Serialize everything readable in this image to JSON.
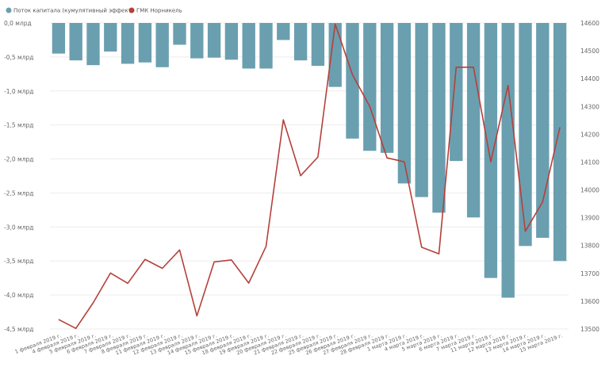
{
  "legend": {
    "items": [
      {
        "label": "Поток капитала (кумулятивный эффект)",
        "color": "#6a9fb0"
      },
      {
        "label": "ГМК Норникель",
        "color": "#b5403a"
      }
    ]
  },
  "chart_data": {
    "type": "bar",
    "categories": [
      "1 февраля 2019 г.",
      "4 февраля 2019 г.",
      "5 февраля 2019 г.",
      "6 февраля 2019 г.",
      "7 февраля 2019 г.",
      "8 февраля 2019 г.",
      "11 февраля 2019 г.",
      "12 февраля 2019 г.",
      "13 февраля 2019 г.",
      "14 февраля 2019 г.",
      "15 февраля 2019 г.",
      "18 февраля 2019 г.",
      "19 февраля 2019 г.",
      "20 февраля 2019 г.",
      "21 февраля 2019 г.",
      "22 февраля 2019 г.",
      "25 февраля 2019 г.",
      "26 февраля 2019 г.",
      "27 февраля 2019 г.",
      "28 февраля 2019 г.",
      "1 марта 2019 г.",
      "4 марта 2019 г.",
      "5 марта 2019 г.",
      "6 марта 2019 г.",
      "7 марта 2019 г.",
      "11 марта 2019 г.",
      "12 марта 2019 г.",
      "13 марта 2019 г.",
      "14 марта 2019 г.",
      "15 марта 2019 г."
    ],
    "series": [
      {
        "name": "Поток капитала (кумулятивный эффект)",
        "kind": "bar",
        "axis": "left",
        "color": "#6a9fb0",
        "values": [
          -0.45,
          -0.55,
          -0.62,
          -0.42,
          -0.6,
          -0.58,
          -0.65,
          -0.32,
          -0.52,
          -0.51,
          -0.54,
          -0.67,
          -0.67,
          -0.25,
          -0.55,
          -0.63,
          -0.94,
          -1.7,
          -1.88,
          -1.91,
          -2.36,
          -2.56,
          -2.79,
          -2.03,
          -2.86,
          -3.75,
          -4.04,
          -3.28,
          -3.16,
          -3.5
        ]
      },
      {
        "name": "ГМК Норникель",
        "kind": "line",
        "axis": "right",
        "color": "#b5403a",
        "values": [
          13534,
          13502,
          13594,
          13701,
          13664,
          13750,
          13718,
          13784,
          13547,
          13741,
          13748,
          13665,
          13797,
          14252,
          14051,
          14118,
          14596,
          14414,
          14300,
          14115,
          14101,
          13794,
          13770,
          14441,
          14441,
          14101,
          14376,
          13851,
          13957,
          14225
        ]
      }
    ],
    "y_left": {
      "ylim": [
        -4.5,
        0
      ],
      "ticks": [
        "0,0 млрд",
        "-0,5 млрд",
        "-1,0 млрд",
        "-1,5 млрд",
        "-2,0 млрд",
        "-2,5 млрд",
        "-3,0 млрд",
        "-3,5 млрд",
        "-4,0 млрд",
        "-4,5 млрд"
      ]
    },
    "y_right": {
      "ylim": [
        13500,
        14600
      ],
      "ticks": [
        "14600",
        "14500",
        "14400",
        "14300",
        "14200",
        "14100",
        "14000",
        "13900",
        "13800",
        "13700",
        "13600",
        "13500"
      ]
    },
    "grid": true,
    "legend_position": "top-left"
  }
}
